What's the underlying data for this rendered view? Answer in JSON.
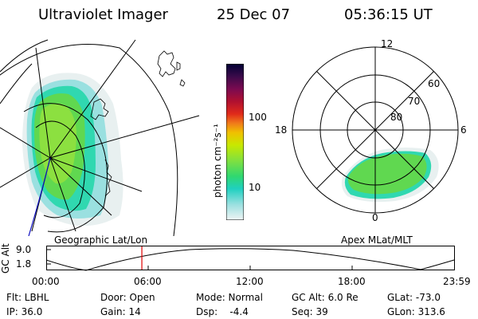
{
  "header": {
    "instrument": "Ultraviolet Imager",
    "date": "25 Dec 07",
    "time": "05:36:15 UT"
  },
  "left_panel": {
    "caption": "Geographic Lat/Lon"
  },
  "right_panel": {
    "caption": "Apex MLat/MLT",
    "mlt_labels": {
      "top": "12",
      "right": "6",
      "bottom": "0",
      "left": "18"
    },
    "lat_labels": [
      "60",
      "70",
      "80"
    ]
  },
  "colorbar": {
    "unit_label": "photon cm⁻²s⁻¹",
    "ticks": [
      "100",
      "10"
    ],
    "colors": [
      "#000033",
      "#2a0a3d",
      "#5c0f52",
      "#8c0a3c",
      "#c00020",
      "#e8301a",
      "#f07a1a",
      "#f0c000",
      "#c8e800",
      "#80e040",
      "#30d870",
      "#20d0c0",
      "#9ae0e0",
      "#e8f0f0"
    ]
  },
  "timeline": {
    "ylabel": "GC Alt",
    "yticks": [
      "9.0",
      "1.8"
    ],
    "xticks": [
      "00:00",
      "06:00",
      "12:00",
      "18:00",
      "23:59"
    ],
    "marker_time_fraction": 0.2335
  },
  "footer": {
    "flt": "Flt: LBHL",
    "ip": "IP: 36.0",
    "door": "Door: Open",
    "gain": "Gain: 14",
    "mode": "Mode: Normal",
    "dsp": "Dsp:    -4.4",
    "gcalt": "GC Alt: 6.0 Re",
    "seq": "Seq: 39",
    "glat": "GLat: -73.0",
    "glon": "GLon: 313.6"
  }
}
